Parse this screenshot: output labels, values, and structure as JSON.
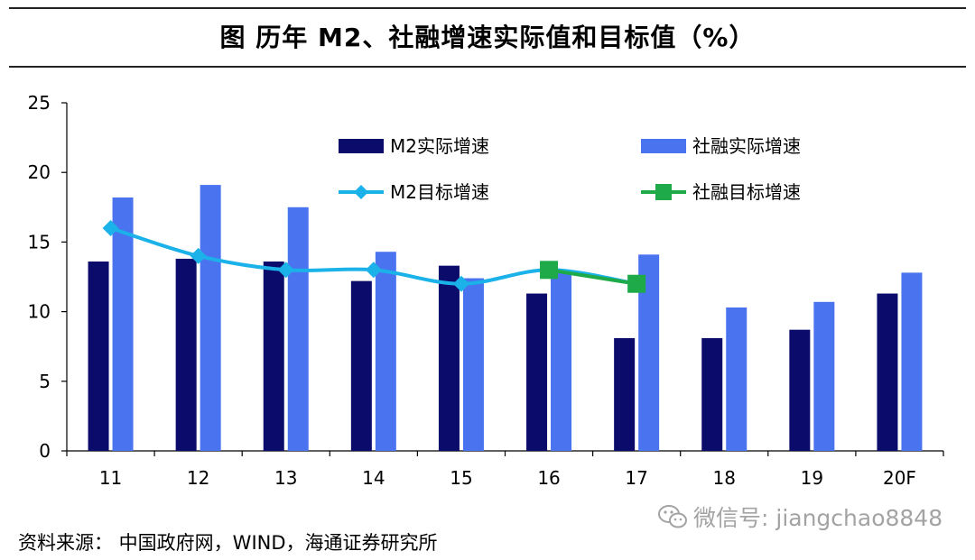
{
  "title": "图    历年 M2、社融增速实际值和目标值（%）",
  "source": "资料来源：  中国政府网，WIND，海通证券研究所",
  "watermark": "微信号: jiangchao8848",
  "chart_data": {
    "type": "bar",
    "categories": [
      "11",
      "12",
      "13",
      "14",
      "15",
      "16",
      "17",
      "18",
      "19",
      "20F"
    ],
    "ylim": [
      0,
      25
    ],
    "yticks": [
      0,
      5,
      10,
      15,
      20,
      25
    ],
    "grid": false,
    "legend_position": "top",
    "series": [
      {
        "name": "M2实际增速",
        "kind": "bar",
        "color": "#0b0b6b",
        "values": [
          13.6,
          13.8,
          13.6,
          12.2,
          13.3,
          11.3,
          8.1,
          8.1,
          8.7,
          11.3
        ]
      },
      {
        "name": "社融实际增速",
        "kind": "bar",
        "color": "#4a73f0",
        "values": [
          18.2,
          19.1,
          17.5,
          14.3,
          12.4,
          12.8,
          14.1,
          10.3,
          10.7,
          12.8
        ]
      },
      {
        "name": "M2目标增速",
        "kind": "line",
        "color": "#1ab2e8",
        "marker": "diamond",
        "values": [
          16,
          14,
          13,
          13,
          12,
          13,
          12,
          null,
          null,
          null
        ]
      },
      {
        "name": "社融目标增速",
        "kind": "line",
        "color": "#1faa4a",
        "marker": "square",
        "values": [
          null,
          null,
          null,
          null,
          null,
          13,
          12,
          null,
          null,
          null
        ]
      }
    ]
  }
}
